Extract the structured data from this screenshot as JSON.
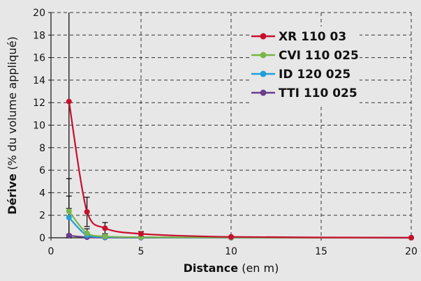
{
  "chart_data": {
    "type": "line",
    "xlabel": {
      "bold": "Distance",
      "normal": " (en m)"
    },
    "ylabel": {
      "bold": "Dérive",
      "normal": " (% du volume appliqué)"
    },
    "xlim": [
      0,
      20
    ],
    "ylim": [
      0,
      20
    ],
    "xticks": [
      0,
      5,
      10,
      15,
      20
    ],
    "yticks": [
      0,
      2,
      4,
      6,
      8,
      10,
      12,
      14,
      16,
      18,
      20
    ],
    "grid": true,
    "legend": "top-right",
    "series": [
      {
        "name": "XR 110 03",
        "color": "#c8102e",
        "x": [
          1,
          2,
          3,
          5,
          10,
          20
        ],
        "y": [
          12.1,
          2.3,
          0.85,
          0.35,
          0.08,
          0.01
        ],
        "error": [
          9.5,
          1.3,
          0.5,
          0.2,
          0.05,
          0.01
        ]
      },
      {
        "name": "CVI 110 025",
        "color": "#7ab648",
        "x": [
          1,
          2,
          3,
          5,
          10,
          20
        ],
        "y": [
          2.35,
          0.4,
          0.12,
          0.05,
          0.02,
          0.0
        ],
        "error": [
          2.9,
          0.4,
          0.1,
          0.03,
          0.01,
          0.0
        ]
      },
      {
        "name": "ID 120 025",
        "color": "#1f9fd6",
        "x": [
          1,
          2,
          3,
          5,
          10,
          20
        ],
        "y": [
          1.8,
          0.2,
          0.06,
          0.03,
          0.01,
          0.0
        ],
        "error": [
          1.9,
          0.2,
          0.05,
          0.02,
          0.01,
          0.0
        ]
      },
      {
        "name": "TTI 110 025",
        "color": "#6a3d8f",
        "x": [
          1,
          2,
          3,
          5,
          10,
          20
        ],
        "y": [
          0.2,
          0.05,
          0.02,
          0.01,
          0.0,
          0.0
        ],
        "error": [
          0.1,
          0.02,
          0.01,
          0.0,
          0.0,
          0.0
        ]
      }
    ]
  }
}
